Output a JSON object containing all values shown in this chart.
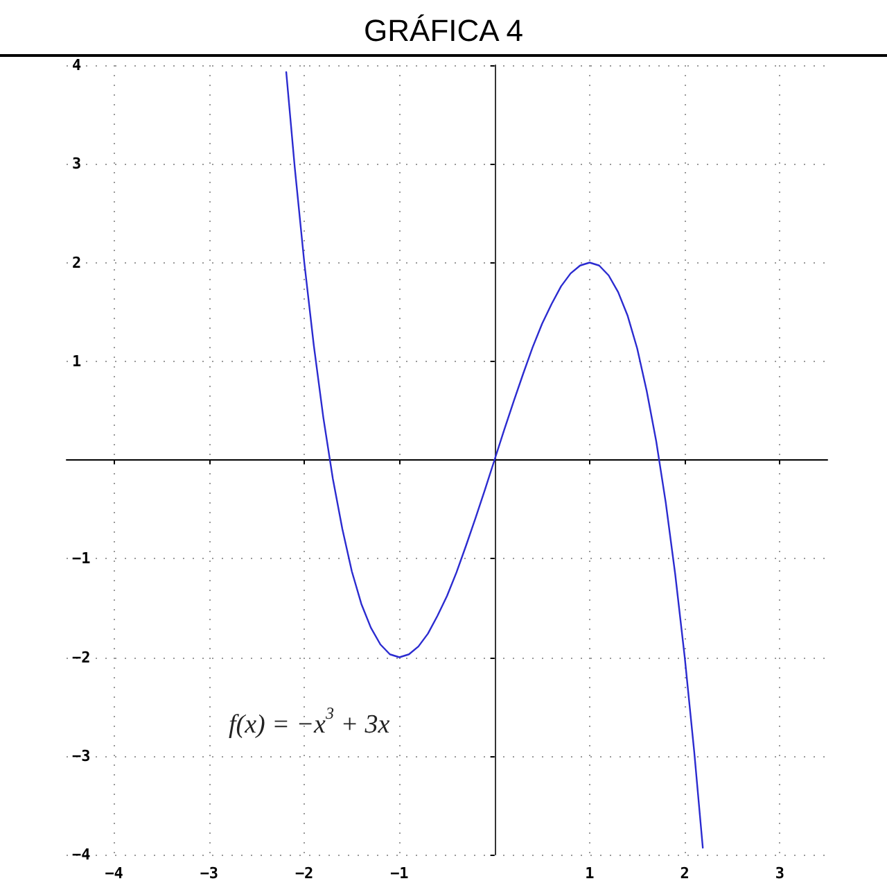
{
  "chart_data": {
    "type": "line",
    "title": "GRÁFICA 4",
    "x": [
      -2.19,
      -2.1,
      -2.0,
      -1.9,
      -1.8,
      -1.7,
      -1.6,
      -1.5,
      -1.4,
      -1.3,
      -1.2,
      -1.1,
      -1.0,
      -0.9,
      -0.8,
      -0.7,
      -0.6,
      -0.5,
      -0.4,
      -0.3,
      -0.2,
      -0.1,
      0,
      0.1,
      0.2,
      0.3,
      0.4,
      0.5,
      0.6,
      0.7,
      0.8,
      0.9,
      1.0,
      1.1,
      1.2,
      1.3,
      1.4,
      1.5,
      1.6,
      1.7,
      1.8,
      1.9,
      2.0,
      2.1,
      2.19
    ],
    "series": [
      {
        "color": "#2b2bd0",
        "values": [
          3.93,
          2.96,
          2.0,
          1.16,
          0.43,
          -0.19,
          -0.7,
          -1.13,
          -1.46,
          -1.7,
          -1.87,
          -1.97,
          -2.0,
          -1.97,
          -1.89,
          -1.76,
          -1.58,
          -1.38,
          -1.14,
          -0.87,
          -0.59,
          -0.3,
          0,
          0.3,
          0.59,
          0.87,
          1.14,
          1.38,
          1.58,
          1.76,
          1.89,
          1.97,
          2.0,
          1.97,
          1.87,
          1.7,
          1.46,
          1.13,
          0.7,
          0.19,
          -0.43,
          -1.16,
          -2.0,
          -2.96,
          -3.93
        ]
      }
    ],
    "xlim": [
      -4.5,
      3.5
    ],
    "xticks": [
      -4,
      -3,
      -2,
      -1,
      1,
      2,
      3
    ],
    "ylim": [
      -4,
      4
    ],
    "yticks": [
      -4,
      -3,
      -2,
      -1,
      1,
      2,
      3,
      4
    ],
    "grid": true,
    "marker": "none",
    "line_style": "solid",
    "annotations": [
      "f(x) = −x$^{3}$ + 3x"
    ]
  }
}
